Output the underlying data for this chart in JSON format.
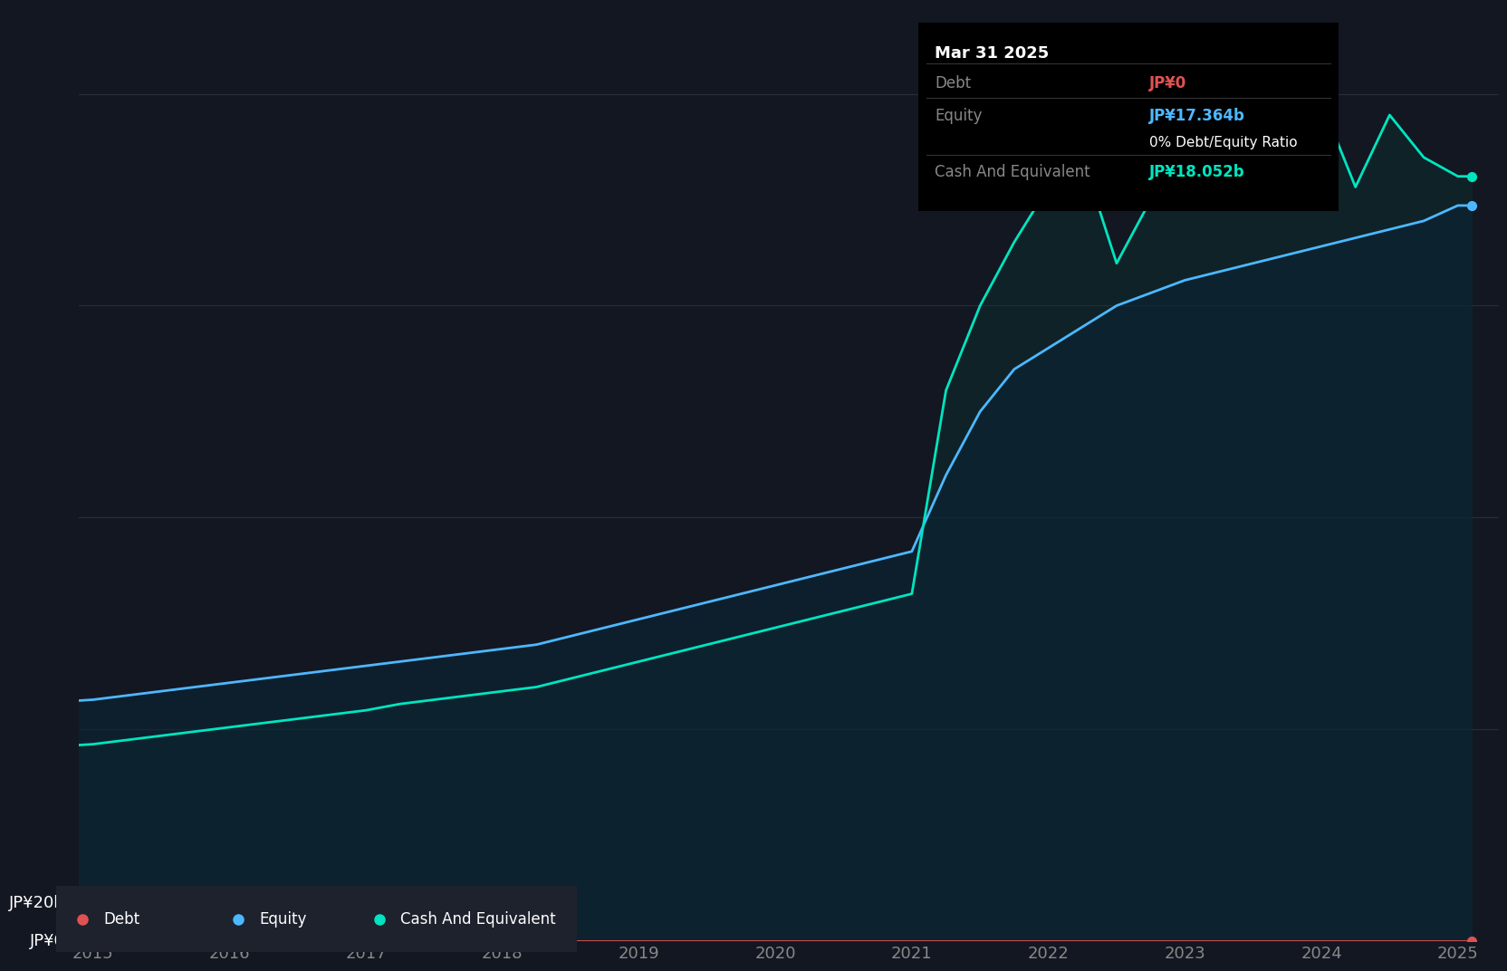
{
  "background_color": "#131722",
  "plot_bg_color": "#131722",
  "grid_color": "#2a2e39",
  "title_box_bg": "#000000",
  "ylabel_jp0": "JP¥0",
  "ylabel_jp20b": "JP¥20b",
  "x_ticks": [
    2015,
    2016,
    2017,
    2018,
    2019,
    2020,
    2021,
    2022,
    2023,
    2024,
    2025
  ],
  "tooltip_title": "Mar 31 2025",
  "tooltip_debt_label": "Debt",
  "tooltip_debt_value": "JP¥0",
  "tooltip_equity_label": "Equity",
  "tooltip_equity_value": "JP¥17.364b",
  "tooltip_ratio": "0% Debt/Equity Ratio",
  "tooltip_cash_label": "Cash And Equivalent",
  "tooltip_cash_value": "JP¥18.052b",
  "debt_color": "#e05252",
  "equity_color": "#4db8ff",
  "cash_color": "#00e5c0",
  "fill_equity_color": "#1a3a4a",
  "fill_cash_color": "#1a4a44",
  "legend_bg": "#1e222d",
  "years": [
    2014.25,
    2014.5,
    2014.75,
    2015.0,
    2015.25,
    2015.5,
    2015.75,
    2016.0,
    2016.25,
    2016.5,
    2016.75,
    2017.0,
    2017.25,
    2017.5,
    2017.75,
    2018.0,
    2018.25,
    2018.5,
    2018.75,
    2019.0,
    2019.25,
    2019.5,
    2019.75,
    2020.0,
    2020.25,
    2020.5,
    2020.75,
    2021.0,
    2021.25,
    2021.5,
    2021.75,
    2022.0,
    2022.25,
    2022.5,
    2022.75,
    2023.0,
    2023.25,
    2023.5,
    2023.75,
    2024.0,
    2024.25,
    2024.5,
    2024.75,
    2025.0,
    2025.1
  ],
  "equity_values": [
    5.5,
    5.6,
    5.65,
    5.7,
    5.8,
    5.9,
    6.0,
    6.1,
    6.2,
    6.3,
    6.4,
    6.5,
    6.6,
    6.7,
    6.8,
    6.9,
    7.0,
    7.2,
    7.4,
    7.6,
    7.8,
    8.0,
    8.2,
    8.4,
    8.6,
    8.8,
    9.0,
    9.2,
    11.0,
    12.5,
    13.5,
    14.0,
    14.5,
    15.0,
    15.3,
    15.6,
    15.8,
    16.0,
    16.2,
    16.4,
    16.6,
    16.8,
    17.0,
    17.364,
    17.364
  ],
  "cash_values": [
    4.5,
    4.55,
    4.6,
    4.65,
    4.75,
    4.85,
    4.95,
    5.05,
    5.15,
    5.25,
    5.35,
    5.45,
    5.6,
    5.7,
    5.8,
    5.9,
    6.0,
    6.2,
    6.4,
    6.6,
    6.8,
    7.0,
    7.2,
    7.4,
    7.6,
    7.8,
    8.0,
    8.2,
    13.0,
    15.0,
    16.5,
    17.8,
    18.5,
    16.0,
    17.5,
    19.5,
    18.0,
    17.5,
    18.5,
    19.8,
    17.8,
    19.5,
    18.5,
    18.052,
    18.052
  ],
  "debt_values": [
    0,
    0,
    0,
    0,
    0,
    0,
    0,
    0,
    0,
    0,
    0,
    0,
    0,
    0,
    0,
    0,
    0,
    0,
    0,
    0,
    0,
    0,
    0,
    0,
    0,
    0,
    0,
    0,
    0,
    0,
    0,
    0,
    0,
    0,
    0,
    0,
    0,
    0,
    0,
    0,
    0,
    0,
    0,
    0,
    0
  ],
  "ylim": [
    0,
    22
  ],
  "xlim": [
    2014.9,
    2025.3
  ]
}
